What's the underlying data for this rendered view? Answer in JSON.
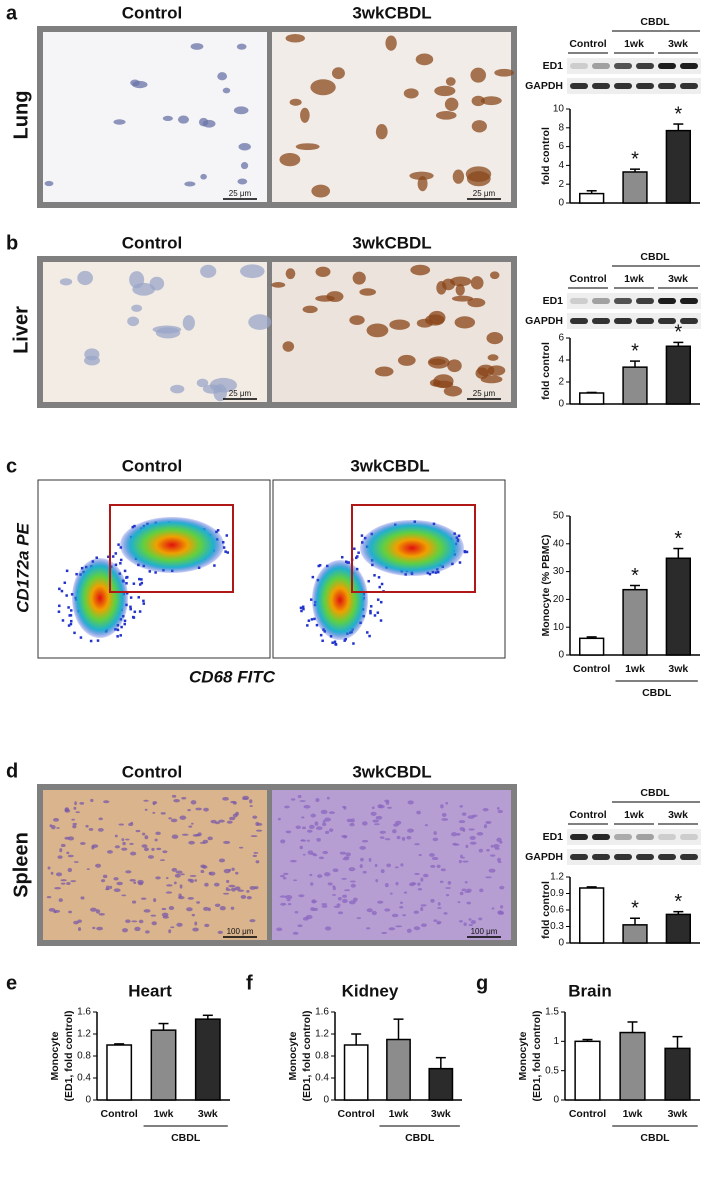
{
  "figure": {
    "panels": [
      {
        "letter": "a",
        "tissue": "Lung",
        "image_labels": [
          "Control",
          "3wkCBDL"
        ],
        "scale_bar": "25 μm",
        "blot": {
          "group": "CBDL",
          "lanes": [
            "Control",
            "1wk",
            "3wk"
          ],
          "rows": [
            "ED1",
            "GAPDH"
          ]
        }
      },
      {
        "letter": "b",
        "tissue": "Liver",
        "image_labels": [
          "Control",
          "3wkCBDL"
        ],
        "scale_bar": "25 μm",
        "blot": {
          "group": "CBDL",
          "lanes": [
            "Control",
            "1wk",
            "3wk"
          ],
          "rows": [
            "ED1",
            "GAPDH"
          ]
        }
      },
      {
        "letter": "c",
        "image_labels": [
          "Control",
          "3wkCBDL"
        ],
        "flow_ylabel": "CD172a PE",
        "flow_xlabel": "CD68 FITC"
      },
      {
        "letter": "d",
        "tissue": "Spleen",
        "image_labels": [
          "Control",
          "3wkCBDL"
        ],
        "scale_bar": "100 μm",
        "blot": {
          "group": "CBDL",
          "lanes": [
            "Control",
            "1wk",
            "3wk"
          ],
          "rows": [
            "ED1",
            "GAPDH"
          ]
        }
      },
      {
        "letter": "e"
      },
      {
        "letter": "f"
      },
      {
        "letter": "g"
      }
    ]
  },
  "chart_data": [
    {
      "type": "bar",
      "ylabel": "fold control",
      "categories": [
        null,
        null,
        null
      ],
      "values": [
        1,
        3.3,
        7.7
      ],
      "errors": [
        0.3,
        0.3,
        0.7
      ],
      "significance": [
        null,
        "*",
        "*"
      ],
      "colors": [
        "#ffffff",
        "#8c8c8c",
        "#2b2b2b"
      ],
      "ylim": [
        0,
        10
      ],
      "yticks": [
        0,
        2,
        4,
        6,
        8,
        10
      ]
    },
    {
      "type": "bar",
      "ylabel": "fold control",
      "categories": [
        null,
        null,
        null
      ],
      "values": [
        1,
        3.35,
        5.25
      ],
      "errors": [
        0.05,
        0.55,
        0.35
      ],
      "significance": [
        null,
        "*",
        "*"
      ],
      "colors": [
        "#ffffff",
        "#8c8c8c",
        "#2b2b2b"
      ],
      "ylim": [
        0,
        6
      ],
      "yticks": [
        0,
        2,
        4,
        6
      ]
    },
    {
      "type": "bar",
      "ylabel": "Monocyte (% PBMC)",
      "categories": [
        "Control",
        "1wk",
        "3wk"
      ],
      "group_label": "CBDL",
      "values": [
        6,
        23.5,
        34.8
      ],
      "errors": [
        0.5,
        1.5,
        3.5
      ],
      "significance": [
        null,
        "*",
        "*"
      ],
      "colors": [
        "#ffffff",
        "#8c8c8c",
        "#2b2b2b"
      ],
      "ylim": [
        0,
        50
      ],
      "yticks": [
        0,
        10,
        20,
        30,
        40,
        50
      ]
    },
    {
      "type": "bar",
      "ylabel": "fold control",
      "categories": [
        null,
        null,
        null
      ],
      "values": [
        1,
        0.33,
        0.52
      ],
      "errors": [
        0.02,
        0.12,
        0.05
      ],
      "significance": [
        null,
        "*",
        "*"
      ],
      "colors": [
        "#ffffff",
        "#8c8c8c",
        "#2b2b2b"
      ],
      "ylim": [
        0,
        1.2
      ],
      "yticks": [
        0,
        0.3,
        0.6,
        0.9,
        1.2
      ]
    },
    {
      "type": "bar",
      "title": "Heart",
      "ylabel": [
        "Monocyte",
        "(ED1, fold control)"
      ],
      "categories": [
        "Control",
        "1wk",
        "3wk"
      ],
      "group_label": "CBDL",
      "values": [
        1,
        1.27,
        1.47
      ],
      "errors": [
        0.02,
        0.12,
        0.07
      ],
      "colors": [
        "#ffffff",
        "#8c8c8c",
        "#2b2b2b"
      ],
      "ylim": [
        0,
        1.6
      ],
      "yticks": [
        0,
        0.4,
        0.8,
        1.2,
        1.6
      ]
    },
    {
      "type": "bar",
      "title": "Kidney",
      "ylabel": [
        "Monocyte",
        "(ED1, fold control)"
      ],
      "categories": [
        "Control",
        "1wk",
        "3wk"
      ],
      "group_label": "CBDL",
      "values": [
        1,
        1.1,
        0.57
      ],
      "errors": [
        0.2,
        0.37,
        0.2
      ],
      "colors": [
        "#ffffff",
        "#8c8c8c",
        "#2b2b2b"
      ],
      "ylim": [
        0,
        1.6
      ],
      "yticks": [
        0,
        0.4,
        0.8,
        1.2,
        1.6
      ]
    },
    {
      "type": "bar",
      "title": "Brain",
      "ylabel": [
        "Monocyte",
        "(ED1, fold control)"
      ],
      "categories": [
        "Control",
        "1wk",
        "3wk"
      ],
      "group_label": "CBDL",
      "values": [
        1,
        1.15,
        0.88
      ],
      "errors": [
        0.03,
        0.18,
        0.2
      ],
      "colors": [
        "#ffffff",
        "#8c8c8c",
        "#2b2b2b"
      ],
      "ylim": [
        0,
        1.5
      ],
      "yticks": [
        0,
        0.5,
        1,
        1.5
      ]
    }
  ]
}
